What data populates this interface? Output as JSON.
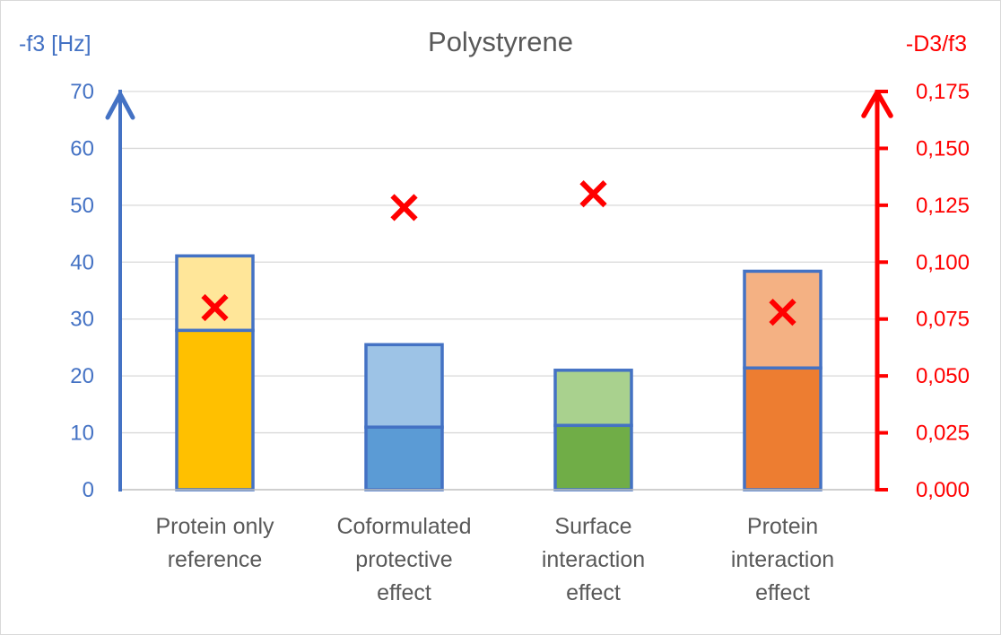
{
  "chart_data": {
    "type": "bar",
    "stacked": true,
    "title": "Polystyrene",
    "categories": [
      [
        "Protein only",
        "reference"
      ],
      [
        "Coformulated",
        "protective",
        "effect"
      ],
      [
        "Surface",
        "interaction",
        "effect"
      ],
      [
        "Protein",
        "interaction",
        "effect"
      ]
    ],
    "series": [
      {
        "values": [
          28,
          11,
          11.3,
          21.4
        ]
      },
      {
        "values": [
          13.1,
          14.5,
          9.7,
          17
        ]
      }
    ],
    "bar_colors": {
      "bottom": [
        "#ffc000",
        "#5b9bd5",
        "#70ad47",
        "#ed7d31"
      ],
      "top": [
        "#ffe699",
        "#9dc3e6",
        "#a9d18e",
        "#f4b183"
      ],
      "outline": "#4472c4"
    },
    "markers": {
      "symbol": "x",
      "color": "#ff0000",
      "axis": "right",
      "values": [
        0.08,
        0.124,
        0.13,
        0.078
      ]
    },
    "y_left": {
      "label": "-f3 [Hz]",
      "range": [
        0,
        70
      ],
      "ticks": [
        "0",
        "10",
        "20",
        "30",
        "40",
        "50",
        "60",
        "70"
      ],
      "color": "#4472c4"
    },
    "y_right": {
      "label": "-D3/f3",
      "range": [
        0,
        0.175
      ],
      "ticks": [
        "0,000",
        "0,025",
        "0,050",
        "0,075",
        "0,100",
        "0,125",
        "0,150",
        "0,175"
      ],
      "color": "#ff0000"
    },
    "grid": true,
    "legend": "none"
  }
}
